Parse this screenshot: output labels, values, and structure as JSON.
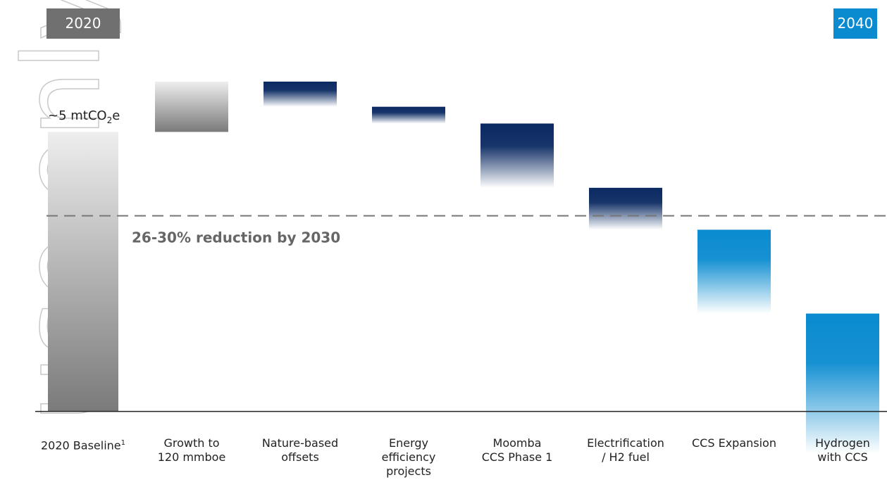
{
  "chart_data": {
    "type": "waterfall",
    "watermark": "use only",
    "start_label": "2020",
    "start_label_color": "#707070",
    "end_label": "2040",
    "end_label_color": "#0a8bd0",
    "categories": [
      "2020 Baseline",
      "Growth to\n120 mmboe",
      "Nature-based\noffsets",
      "Energy\nefficiency\nprojects",
      "Moomba\nCCS Phase 1",
      "Electrification\n/ H2 fuel",
      "CCS Expansion",
      "Hydrogen\nwith CCS"
    ],
    "baseline_footnote": "1",
    "values": [
      5,
      0.9,
      -0.45,
      -0.3,
      -1.15,
      -0.75,
      -1.5,
      -2.5
    ],
    "colors": [
      "#7a7a7a",
      "#7a7a7a",
      "#0b2a62",
      "#0b2a62",
      "#0b2a62",
      "#0b2a62",
      "#0a8bd0",
      "#0a8bd0"
    ],
    "baseline_annotation": {
      "text": "~5 mtCO",
      "subscript": "2",
      "suffix": "e"
    },
    "reference_line": {
      "value": 3.5,
      "label": "26-30% reduction by 2030"
    },
    "ylim": [
      -1,
      6
    ]
  }
}
